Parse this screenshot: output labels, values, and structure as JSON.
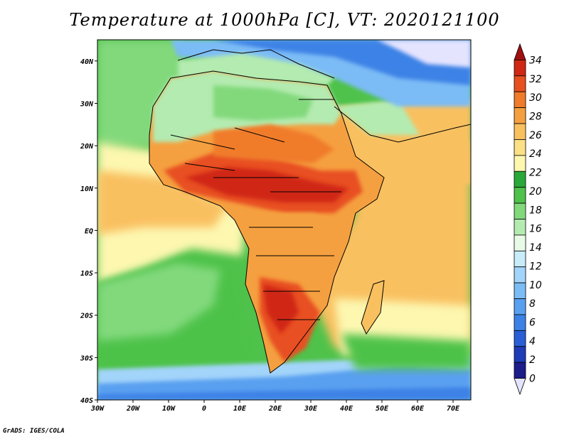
{
  "title": "Temperature at 1000hPa [C], VT: 2020121100",
  "footer": "GrADS: IGES/COLA",
  "map": {
    "lon_labels": [
      "30W",
      "20W",
      "10W",
      "0",
      "10E",
      "20E",
      "30E",
      "40E",
      "50E",
      "60E",
      "70E"
    ],
    "lat_labels": [
      "40N",
      "30N",
      "20N",
      "10N",
      "EQ",
      "10S",
      "20S",
      "30S",
      "40S"
    ],
    "lon_range": [
      -30,
      75
    ],
    "lat_range": [
      -40,
      45
    ]
  },
  "colorbar": {
    "labels": [
      "34",
      "32",
      "30",
      "28",
      "26",
      "24",
      "22",
      "20",
      "18",
      "16",
      "14",
      "12",
      "10",
      "8",
      "6",
      "4",
      "2",
      "0"
    ],
    "colors": [
      "#e4e4ff",
      "#1c1c8a",
      "#1e3cb8",
      "#2a5fd6",
      "#3c82e6",
      "#5aa0f0",
      "#7cbcf6",
      "#a3d4fa",
      "#c8ecfa",
      "#e8fbe6",
      "#b4ebb0",
      "#82d97c",
      "#4ec24a",
      "#2aa83a",
      "#fdf7b0",
      "#fbe086",
      "#f9c060",
      "#f5a040",
      "#f07b2a",
      "#e85020",
      "#d02814",
      "#a01010"
    ]
  },
  "regions": {
    "ocean_south_cold": "#5aa0f0",
    "ocean_south_mid": "#a3d4fa",
    "ocean_south_green": "#4ec24a",
    "ocean_atlantic": "#fdf7b0",
    "ocean_indian": "#f9c060",
    "land_africa": "#f5a040",
    "sahara": "#b4ebb0",
    "sahel_hot": "#d02814",
    "kalahari": "#e85020",
    "europe": "#3c82e6",
    "arabia": "#f9c060"
  }
}
